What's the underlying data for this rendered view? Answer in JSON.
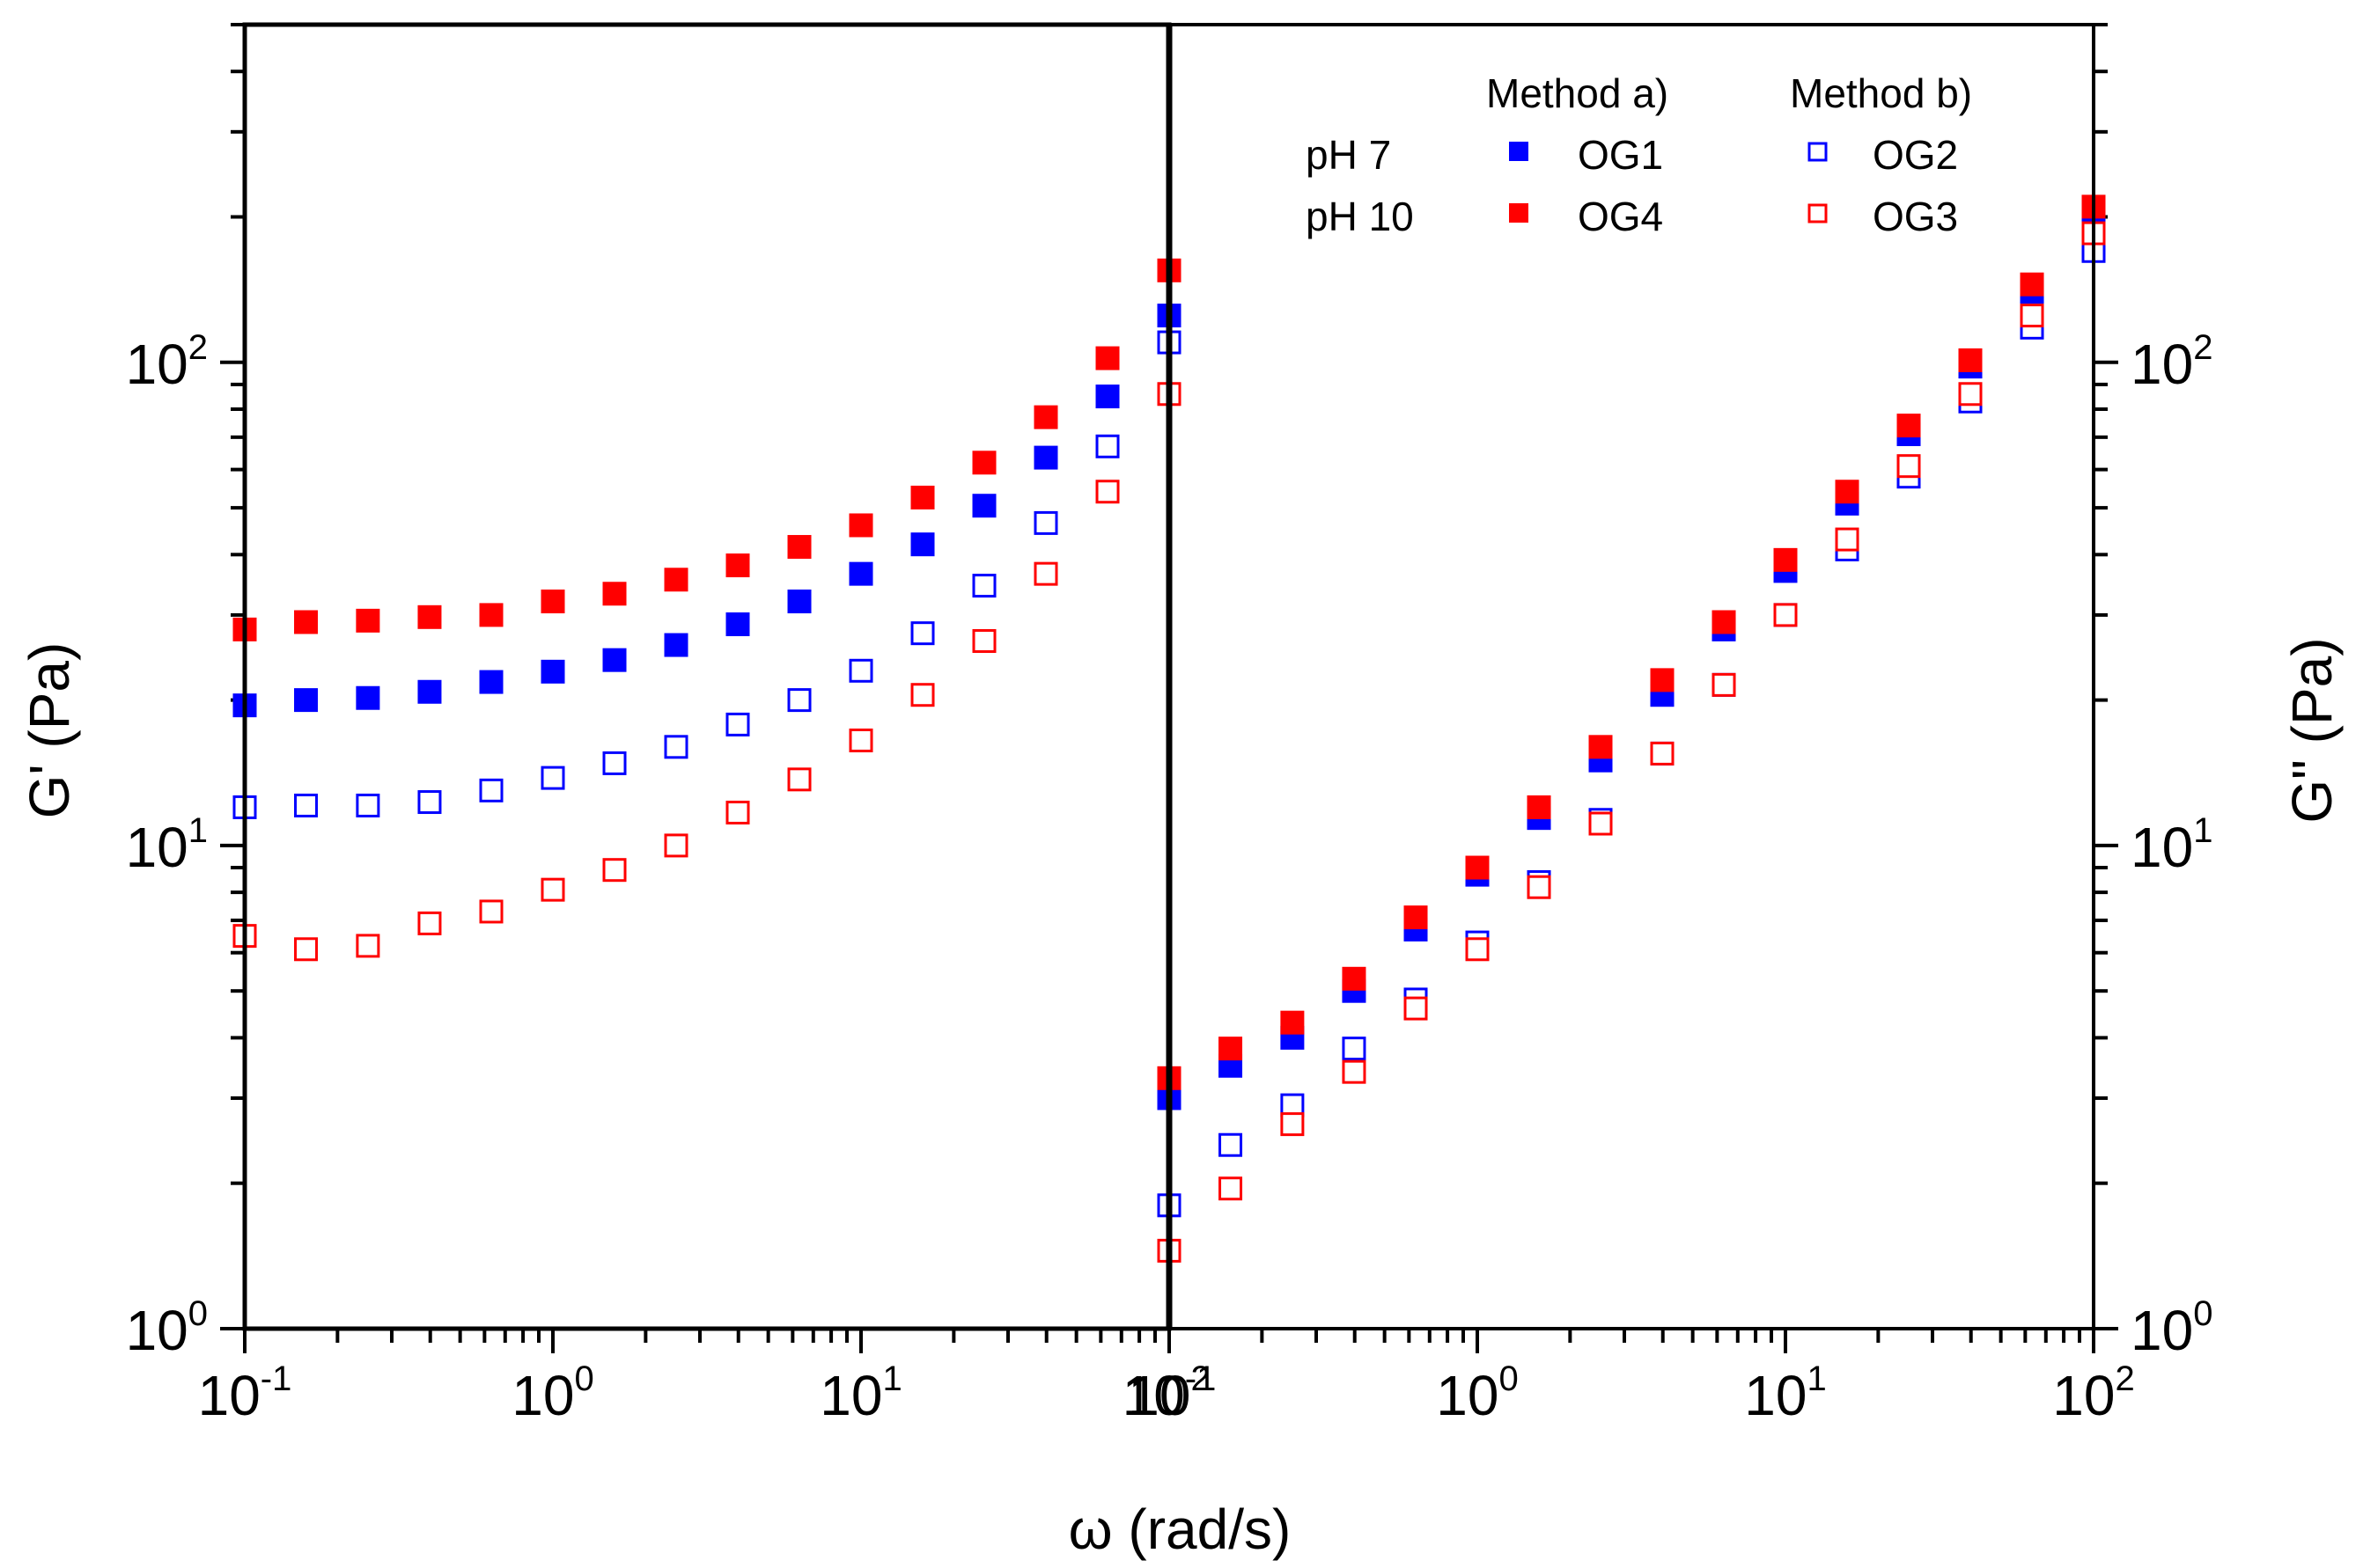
{
  "chart_data": {
    "type": "scatter",
    "xlabel": "ω (rad/s)",
    "ylabel_left": "G' (Pa)",
    "ylabel_right": "G\" (Pa)",
    "x_scale": "log",
    "y_scale": "log",
    "panels": [
      {
        "name": "storage-modulus",
        "quantity": "G'",
        "xlim": [
          0.1,
          100
        ],
        "ylim": [
          1,
          500
        ]
      },
      {
        "name": "loss-modulus",
        "quantity": "G\"",
        "xlim": [
          0.1,
          100
        ],
        "ylim": [
          1,
          500
        ]
      }
    ],
    "x_ticks": [
      {
        "base": "10",
        "exp": "-1",
        "value": 0.1
      },
      {
        "base": "10",
        "exp": "0",
        "value": 1
      },
      {
        "base": "10",
        "exp": "1",
        "value": 10
      },
      {
        "base": "10",
        "exp": "2",
        "value": 100
      }
    ],
    "y_ticks": [
      {
        "base": "10",
        "exp": "0",
        "value": 1
      },
      {
        "base": "10",
        "exp": "1",
        "value": 10
      },
      {
        "base": "10",
        "exp": "2",
        "value": 100
      }
    ],
    "x": [
      0.1,
      0.158,
      0.251,
      0.398,
      0.631,
      1.0,
      1.585,
      2.512,
      3.981,
      6.31,
      10.0,
      15.85,
      25.12,
      39.81,
      63.1,
      100.0
    ],
    "legend": {
      "method_a_header": "Method a)",
      "method_b_header": "Method b)",
      "rows": [
        {
          "label": "pH 7",
          "method_a": "OG1",
          "method_b": "OG2"
        },
        {
          "label": "pH 10",
          "method_a": "OG4",
          "method_b": "OG3"
        }
      ]
    },
    "series": [
      {
        "name": "OG1",
        "method": "Method a)",
        "ph": "pH 7",
        "marker": "filled-square",
        "color": "#0000ff",
        "G_prime": [
          19.5,
          20.0,
          20.2,
          20.8,
          21.8,
          22.9,
          24.2,
          26.0,
          28.7,
          32.0,
          36.5,
          42.0,
          50.5,
          63.5,
          85.0,
          125.0
        ],
        "G_double_prime": [
          3.0,
          3.5,
          4.0,
          5.0,
          6.7,
          8.7,
          11.4,
          15.0,
          20.5,
          28.0,
          37.0,
          51.0,
          71.0,
          98.0,
          140.0,
          200.0
        ]
      },
      {
        "name": "OG4",
        "method": "Method a)",
        "ph": "pH 10",
        "marker": "filled-square",
        "color": "#ff0000",
        "G_prime": [
          28.0,
          29.0,
          29.2,
          29.7,
          30.0,
          32.0,
          33.2,
          35.5,
          38.0,
          41.5,
          46.0,
          52.5,
          62.0,
          77.0,
          102.0,
          155.0
        ],
        "G_double_prime": [
          3.3,
          3.8,
          4.3,
          5.3,
          7.1,
          9.0,
          12.0,
          16.0,
          22.0,
          29.0,
          39.0,
          54.0,
          74.0,
          101.0,
          145.0,
          210.0
        ]
      },
      {
        "name": "OG2",
        "method": "Method b)",
        "ph": "pH 7",
        "marker": "open-square",
        "color": "#0000ff",
        "G_prime": [
          12.0,
          12.1,
          12.1,
          12.3,
          13.0,
          13.8,
          14.8,
          16.0,
          17.8,
          20.0,
          23.0,
          27.5,
          34.5,
          46.5,
          67.0,
          110.0
        ],
        "G_double_prime": [
          1.8,
          2.4,
          2.9,
          3.8,
          4.8,
          6.3,
          8.4,
          11.3,
          15.5,
          21.5,
          30.0,
          41.0,
          58.0,
          83.0,
          118.0,
          170.0
        ]
      },
      {
        "name": "OG3",
        "method": "Method b)",
        "ph": "pH 10",
        "marker": "open-square",
        "color": "#ff0000",
        "G_prime": [
          6.5,
          6.1,
          6.2,
          6.9,
          7.3,
          8.1,
          8.9,
          10.0,
          11.7,
          13.7,
          16.5,
          20.5,
          26.5,
          36.5,
          54.0,
          86.0
        ],
        "G_double_prime": [
          1.45,
          1.95,
          2.65,
          3.4,
          4.6,
          6.1,
          8.2,
          11.1,
          15.5,
          21.5,
          30.0,
          43.0,
          61.0,
          86.0,
          125.0,
          185.0
        ]
      }
    ]
  }
}
